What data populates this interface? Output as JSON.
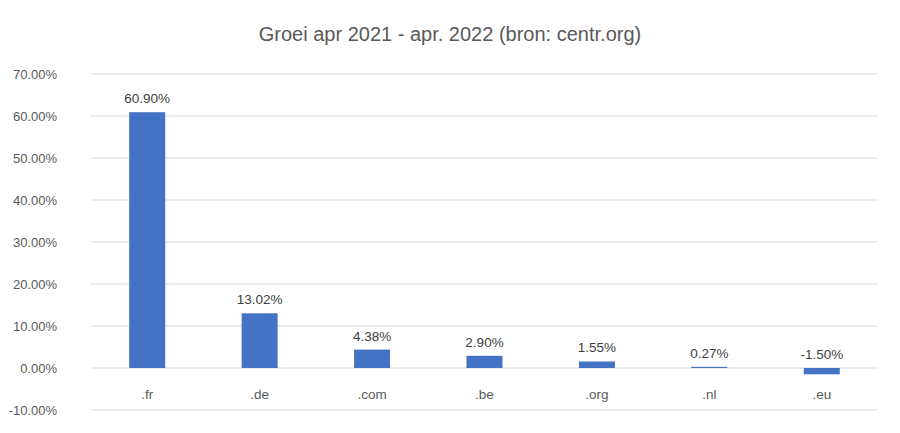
{
  "chart_data": {
    "type": "bar",
    "title": "Groei apr 2021 - apr. 2022 (bron: centr.org)",
    "categories": [
      ".fr",
      ".de",
      ".com",
      ".be",
      ".org",
      ".nl",
      ".eu"
    ],
    "values": [
      60.9,
      13.02,
      4.38,
      2.9,
      1.55,
      0.27,
      -1.5
    ],
    "value_labels": [
      "60.90%",
      "13.02%",
      "4.38%",
      "2.90%",
      "1.55%",
      "0.27%",
      "-1.50%"
    ],
    "data_labels": true,
    "color": "#4472c4",
    "ylim": [
      -10,
      70
    ],
    "yticks": [
      {
        "value": -10,
        "label": "-10.00%"
      },
      {
        "value": 0,
        "label": "0.00%"
      },
      {
        "value": 10,
        "label": "10.00%"
      },
      {
        "value": 20,
        "label": "20.00%"
      },
      {
        "value": 30,
        "label": "30.00%"
      },
      {
        "value": 40,
        "label": "40.00%"
      },
      {
        "value": 50,
        "label": "50.00%"
      },
      {
        "value": 60,
        "label": "60.00%"
      },
      {
        "value": 70,
        "label": "70.00%"
      }
    ],
    "grid": true
  }
}
